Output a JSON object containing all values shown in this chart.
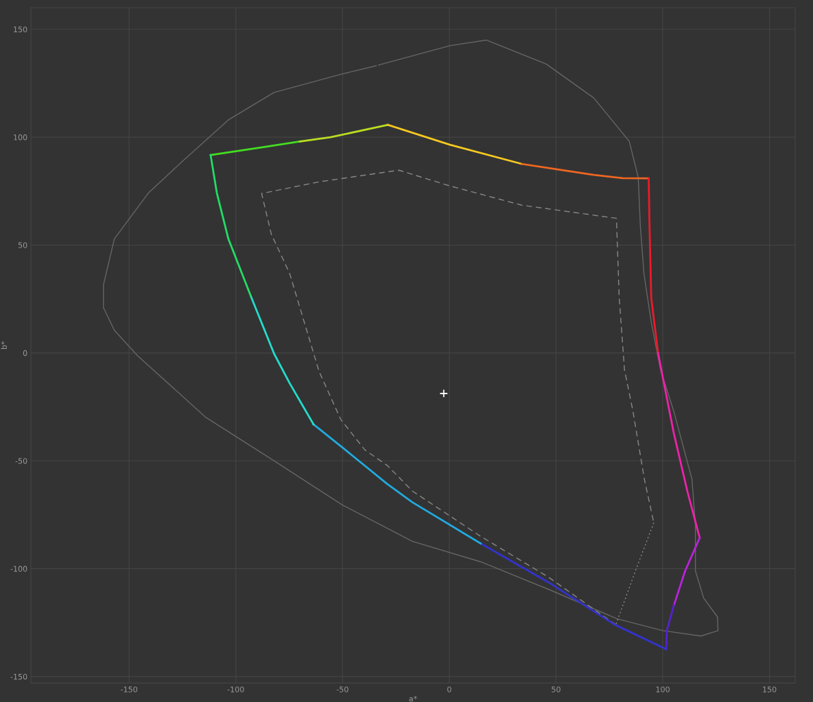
{
  "chart_data": {
    "type": "line",
    "xlabel": "a*",
    "ylabel": "b*",
    "xlim": [
      -196,
      162
    ],
    "ylim": [
      -153,
      160
    ],
    "xticks": [
      -150,
      -100,
      -50,
      0,
      50,
      100,
      150
    ],
    "yticks": [
      -150,
      -100,
      -50,
      0,
      50,
      100,
      150
    ],
    "grid": true,
    "legend": false,
    "series": [
      {
        "color": "#666666",
        "line_style": "solid",
        "x": [
          -33.2,
          0.3,
          17.3,
          45.4,
          67.7,
          84.3,
          88.5,
          89.5,
          91.2,
          94.6,
          99,
          105.1,
          113.7,
          115.3,
          115.3,
          119.2,
          125.6,
          125.9,
          117.9,
          100,
          78.6,
          46.6,
          14.7,
          -17.3,
          -50.2,
          -82.1,
          -114,
          -146,
          -156.9,
          -162,
          -162,
          -156.9,
          -140.9,
          -124.9,
          -103.5,
          -82.1,
          -50.2,
          -34.2
        ],
        "values": [
          133.4,
          142.4,
          145,
          133.9,
          118.2,
          98.1,
          81.4,
          58.9,
          36.6,
          14.3,
          -8,
          -26.8,
          -58.6,
          -79.9,
          -101,
          -113.7,
          -122.3,
          -128.7,
          -131.2,
          -128.7,
          -123.2,
          -109.6,
          -96.8,
          -87.3,
          -70.4,
          -50,
          -29.9,
          -1.3,
          10.5,
          21,
          31.5,
          52.9,
          74.2,
          88.9,
          108,
          120.7,
          129.3,
          133.1
        ]
      },
      {
        "color": "#888888",
        "line_style": "dashed",
        "x": [
          78,
          46.6,
          14.7,
          -17.3,
          -29,
          -39.6,
          -50.8,
          -61,
          -74.8,
          -83.4,
          -87.9,
          -61,
          -23.6,
          0.3,
          33.9,
          78.3,
          79.6,
          82.1,
          86,
          91.4,
          95.8
        ],
        "values": [
          -126,
          -104,
          -85,
          -64,
          -52.2,
          -44.9,
          -30.9,
          -8.6,
          36.9,
          55.1,
          73.9,
          79.3,
          84.7,
          77.4,
          68.5,
          62.4,
          25.5,
          -8,
          -26.8,
          -58.6,
          -78.7
        ]
      },
      {
        "color": "#888888",
        "line_style": "dotted",
        "x": [
          95.8,
          87.2,
          78
        ],
        "values": [
          -78.7,
          -101,
          -126
        ]
      },
      {
        "color": "#44dd22",
        "line_style": "solid",
        "x": [
          -111.8,
          -86.6,
          -70
        ],
        "values": [
          91.7,
          95.5,
          98
        ]
      },
      {
        "color": "#bbdd22",
        "line_style": "solid",
        "x": [
          -70,
          -55.6,
          -28.8
        ],
        "values": [
          98,
          100,
          105.7
        ]
      },
      {
        "color": "#f5c822",
        "line_style": "solid",
        "x": [
          -28.8,
          0.3,
          34
        ],
        "values": [
          105.7,
          96.5,
          87.6
        ]
      },
      {
        "color": "#ee6622",
        "line_style": "solid",
        "x": [
          34,
          67.7,
          81.2,
          93.4
        ],
        "values": [
          87.6,
          82.5,
          81.0,
          80.9
        ]
      },
      {
        "color": "#ee1a2a",
        "line_style": "solid",
        "x": [
          93.4,
          93.8,
          94.6,
          97.8
        ],
        "values": [
          80.9,
          59.0,
          25.5,
          0
        ]
      },
      {
        "color": "#ee22aa",
        "line_style": "solid",
        "x": [
          97.8,
          99.9,
          105.2,
          111.5,
          117.3
        ],
        "values": [
          0,
          -10.8,
          -37.3,
          -64,
          -85.7
        ]
      },
      {
        "color": "#bb22dd",
        "line_style": "solid",
        "x": [
          117.3,
          110.5,
          105.2
        ],
        "values": [
          -85.7,
          -101,
          -117
        ]
      },
      {
        "color": "#5522cc",
        "line_style": "solid",
        "x": [
          105.2,
          101.9,
          101.6
        ],
        "values": [
          -117,
          -128.7,
          -137.3
        ]
      },
      {
        "color": "#3333cc",
        "line_style": "solid",
        "x": [
          101.6,
          77.6,
          46.6,
          14.7
        ],
        "values": [
          -137.3,
          -126,
          -106.4,
          -88.3
        ]
      },
      {
        "color": "#22aadd",
        "line_style": "solid",
        "x": [
          14.7,
          -17.3,
          -29,
          -50.2,
          -63.6
        ],
        "values": [
          -88.3,
          -69.2,
          -60.8,
          -43.7,
          -33.1
        ]
      },
      {
        "color": "#22ddcc",
        "line_style": "solid",
        "x": [
          -63.6,
          -74.8,
          -82.1,
          -93
        ],
        "values": [
          -33.1,
          -14,
          -0.3,
          26.4
        ]
      },
      {
        "color": "#22dd66",
        "line_style": "solid",
        "x": [
          -93,
          -103.5,
          -108.9,
          -111.8
        ],
        "values": [
          26.4,
          52.9,
          74.2,
          91.7
        ]
      },
      {
        "type": "scatter",
        "color": "#ffffff",
        "marker": "cross",
        "x": [
          -2.6
        ],
        "values": [
          -18.8
        ]
      }
    ]
  }
}
